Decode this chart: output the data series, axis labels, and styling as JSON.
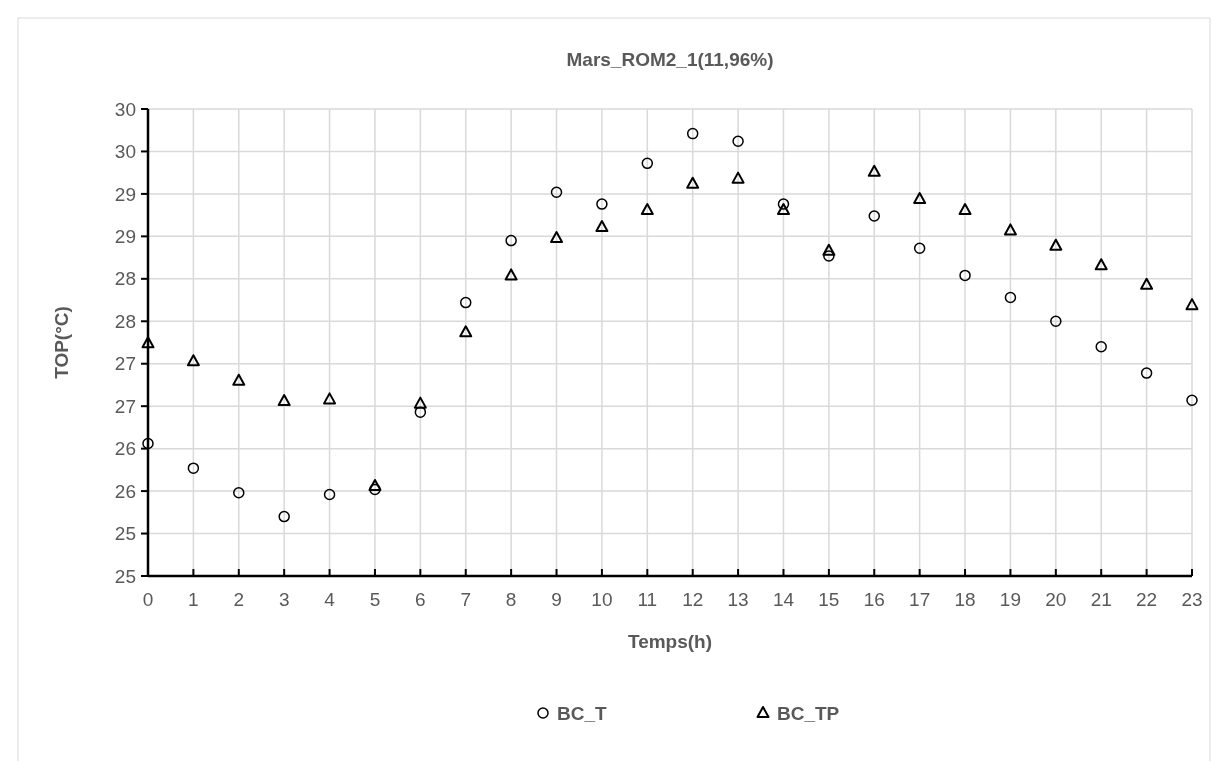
{
  "chart_data": {
    "type": "scatter",
    "title": "Mars_ROM2_1(11,96%)",
    "xlabel": "Temps(h)",
    "ylabel": "TOP(°C)",
    "x": [
      0,
      1,
      2,
      3,
      4,
      5,
      6,
      7,
      8,
      9,
      10,
      11,
      12,
      13,
      14,
      15,
      16,
      17,
      18,
      19,
      20,
      21,
      22,
      23
    ],
    "series": [
      {
        "name": "BC_T",
        "color": "#000000",
        "marker": "circle",
        "values": [
          26.06,
          25.77,
          25.48,
          25.2,
          25.46,
          25.52,
          26.43,
          27.72,
          28.45,
          29.02,
          28.88,
          29.36,
          29.71,
          29.62,
          28.88,
          28.27,
          28.74,
          28.36,
          28.04,
          27.78,
          27.5,
          27.2,
          26.89,
          26.57
        ]
      },
      {
        "name": "BC_TP",
        "color": "#000000",
        "marker": "triangle",
        "values": [
          27.24,
          27.03,
          26.8,
          26.56,
          26.58,
          25.56,
          26.53,
          27.37,
          28.04,
          28.48,
          28.61,
          28.81,
          29.12,
          29.18,
          28.81,
          28.33,
          29.26,
          28.94,
          28.81,
          28.57,
          28.39,
          28.16,
          27.93,
          27.69
        ]
      }
    ],
    "xlim": [
      0,
      23
    ],
    "xticks": [
      0,
      1,
      2,
      3,
      4,
      5,
      6,
      7,
      8,
      9,
      10,
      11,
      12,
      13,
      14,
      15,
      16,
      17,
      18,
      19,
      20,
      21,
      22,
      23
    ],
    "ylim": [
      24.5,
      30
    ],
    "yticks": [
      {
        "value": 24.5,
        "label": "25"
      },
      25,
      {
        "value": 25.5,
        "label": "26"
      },
      26,
      {
        "value": 26.5,
        "label": "27"
      },
      27,
      {
        "value": 27.5,
        "label": "28"
      },
      28,
      {
        "value": 28.5,
        "label": "29"
      },
      29,
      {
        "value": 29.5,
        "label": "30"
      },
      30
    ],
    "grid": true,
    "legend": "bottom"
  }
}
